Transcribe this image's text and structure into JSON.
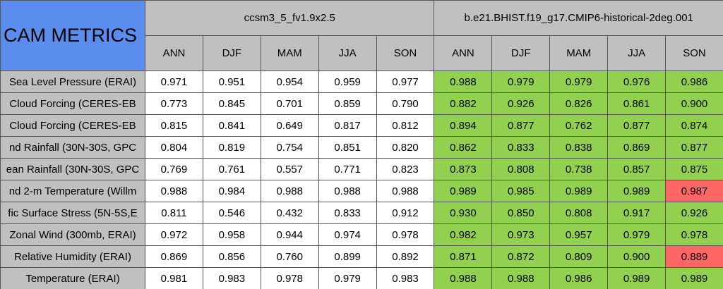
{
  "title": "CAM METRICS",
  "models": [
    {
      "name": "ccsm3_5_fv1.9x2.5",
      "seasons": [
        "ANN",
        "DJF",
        "MAM",
        "JJA",
        "SON"
      ]
    },
    {
      "name": "b.e21.BHIST.f19_g17.CMIP6-historical-2deg.001",
      "seasons": [
        "ANN",
        "DJF",
        "MAM",
        "JJA",
        "SON"
      ]
    }
  ],
  "higher_color": "#92d050",
  "lower_color": "#ff6666",
  "rows": [
    {
      "label": "Sea Level Pressure (ERAI)",
      "values": [
        [
          "0.971",
          "0.951",
          "0.954",
          "0.959",
          "0.977"
        ],
        [
          "0.988",
          "0.979",
          "0.979",
          "0.976",
          "0.986"
        ]
      ]
    },
    {
      "label": "Cloud Forcing (CERES-EB",
      "values": [
        [
          "0.773",
          "0.845",
          "0.701",
          "0.859",
          "0.790"
        ],
        [
          "0.882",
          "0.926",
          "0.826",
          "0.861",
          "0.900"
        ]
      ]
    },
    {
      "label": "Cloud Forcing (CERES-EB",
      "values": [
        [
          "0.815",
          "0.841",
          "0.649",
          "0.817",
          "0.812"
        ],
        [
          "0.894",
          "0.877",
          "0.762",
          "0.877",
          "0.874"
        ]
      ]
    },
    {
      "label": "nd Rainfall (30N-30S, GPC",
      "values": [
        [
          "0.804",
          "0.819",
          "0.754",
          "0.851",
          "0.820"
        ],
        [
          "0.862",
          "0.833",
          "0.838",
          "0.869",
          "0.877"
        ]
      ]
    },
    {
      "label": "ean Rainfall (30N-30S, GPC",
      "values": [
        [
          "0.769",
          "0.761",
          "0.557",
          "0.771",
          "0.823"
        ],
        [
          "0.873",
          "0.808",
          "0.738",
          "0.857",
          "0.875"
        ]
      ]
    },
    {
      "label": "nd 2-m Temperature (Willm",
      "values": [
        [
          "0.988",
          "0.984",
          "0.988",
          "0.988",
          "0.988"
        ],
        [
          "0.989",
          "0.985",
          "0.989",
          "0.989",
          "0.987"
        ]
      ]
    },
    {
      "label": "fic Surface Stress (5N-5S,E",
      "values": [
        [
          "0.811",
          "0.546",
          "0.432",
          "0.833",
          "0.912"
        ],
        [
          "0.930",
          "0.850",
          "0.808",
          "0.917",
          "0.926"
        ]
      ]
    },
    {
      "label": "Zonal Wind (300mb, ERAI)",
      "values": [
        [
          "0.972",
          "0.958",
          "0.944",
          "0.974",
          "0.978"
        ],
        [
          "0.982",
          "0.973",
          "0.957",
          "0.979",
          "0.978"
        ]
      ]
    },
    {
      "label": "Relative Humidity (ERAI)",
      "values": [
        [
          "0.869",
          "0.856",
          "0.760",
          "0.899",
          "0.892"
        ],
        [
          "0.871",
          "0.872",
          "0.809",
          "0.900",
          "0.889"
        ]
      ]
    },
    {
      "label": "Temperature (ERAI)",
      "values": [
        [
          "0.981",
          "0.983",
          "0.978",
          "0.979",
          "0.983"
        ],
        [
          "0.988",
          "0.988",
          "0.986",
          "0.989",
          "0.989"
        ]
      ]
    }
  ]
}
